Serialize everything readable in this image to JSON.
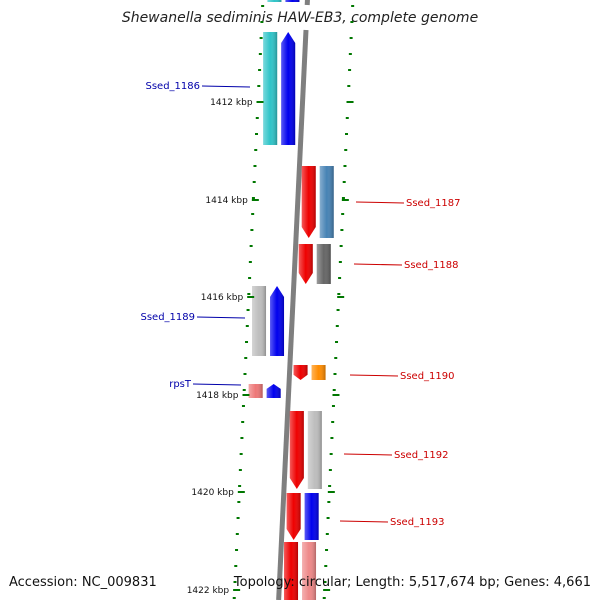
{
  "title": "Shewanella sediminis HAW-EB3, complete genome",
  "accession": "Accession: NC_009831",
  "summary": "Topology: circular; Length: 5,517,674 bp; Genes: 4,661",
  "colors": {
    "forward_label": "#0000aa",
    "reverse_label": "#cc0000",
    "tick": "#007700",
    "axis": "#7f7f7f"
  },
  "kbp_labels": [
    "1412 kbp",
    "1414 kbp",
    "1416 kbp",
    "1418 kbp",
    "1420 kbp",
    "1422 kbp"
  ],
  "genes": [
    {
      "id": "Ssed_1186",
      "strand": "forward",
      "color": "#2fc4c8",
      "pair_color": "#0000ee"
    },
    {
      "id": "Ssed_1187",
      "strand": "reverse",
      "color": "#ee0000",
      "pair_color": "#4682b4"
    },
    {
      "id": "Ssed_1188",
      "strand": "reverse",
      "color": "#ee0000",
      "pair_color": "#666666"
    },
    {
      "id": "Ssed_1189",
      "strand": "forward",
      "color": "#bdbdbd",
      "pair_color": "#0000ee"
    },
    {
      "id": "Ssed_1190",
      "strand": "reverse",
      "color": "#ee0000",
      "pair_color": "#ff8c00"
    },
    {
      "id": "rpsT",
      "strand": "forward",
      "color": "#ee7777",
      "pair_color": "#0000ee"
    },
    {
      "id": "Ssed_1192",
      "strand": "reverse",
      "color": "#ee0000",
      "pair_color": "#bdbdbd"
    },
    {
      "id": "Ssed_1193",
      "strand": "reverse",
      "color": "#ee0000",
      "pair_color": "#0000ee"
    }
  ]
}
